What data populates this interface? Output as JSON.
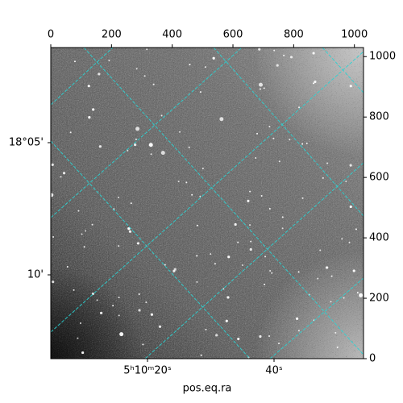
{
  "chart_data": {
    "type": "image",
    "xlabel": "pos.eq.ra",
    "xlim": [
      0,
      1030
    ],
    "ylim": [
      0,
      1030
    ],
    "xticks": [
      0,
      200,
      400,
      600,
      800,
      1000
    ],
    "yticks": [
      0,
      200,
      400,
      600,
      800,
      1000
    ],
    "wcs_x_labels": [
      "5ʰ10ᵐ20ˢ",
      "40ˢ"
    ],
    "wcs_y_labels": [
      "18°05'",
      "10'"
    ],
    "cmap": "gray"
  }
}
